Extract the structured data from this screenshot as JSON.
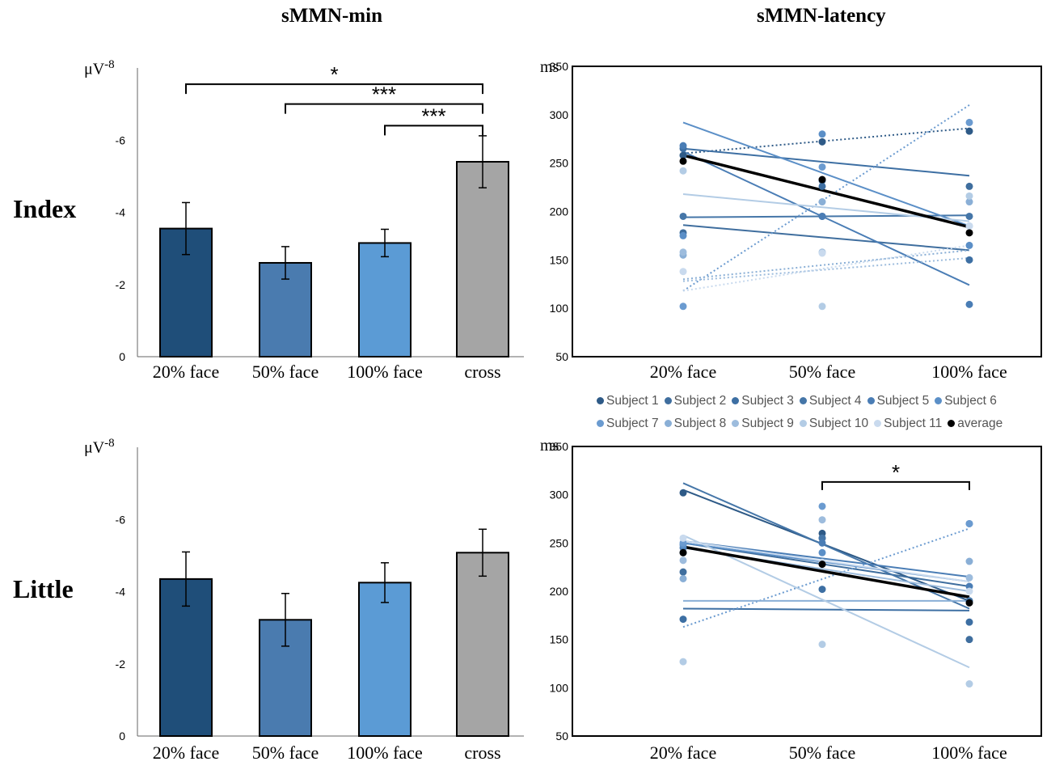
{
  "column_titles": {
    "left": "sMMN-min",
    "right": "sMMN-latency"
  },
  "row_labels": {
    "top": "Index",
    "bottom": "Little"
  },
  "units": {
    "amplitude": "μV",
    "amplitude_exp": "-8",
    "latency": "ms"
  },
  "chart_data": [
    {
      "type": "bar",
      "title": "sMMN-min",
      "row": "Index",
      "categories": [
        "20% face",
        "50% face",
        "100% face",
        "cross"
      ],
      "values": [
        -3.55,
        -2.6,
        -3.15,
        -5.4
      ],
      "errors": [
        0.72,
        0.45,
        0.38,
        0.72
      ],
      "colors": [
        "#1F4E79",
        "#4A7BAF",
        "#5B9BD5",
        "#A5A5A5"
      ],
      "ylim": [
        0,
        -8
      ],
      "yticks": [
        0,
        -2,
        -4,
        -6,
        -8
      ],
      "ytick_labels": [
        "0",
        "-2",
        "-4",
        "-6",
        "-8"
      ],
      "ylabel": "μV",
      "significance": [
        {
          "from": 0,
          "to": 3,
          "label": "*",
          "level": -7.55
        },
        {
          "from": 1,
          "to": 3,
          "label": "***",
          "level": -7.0
        },
        {
          "from": 2,
          "to": 3,
          "label": "***",
          "level": -6.4
        }
      ]
    },
    {
      "type": "bar",
      "title": "sMMN-min",
      "row": "Little",
      "categories": [
        "20% face",
        "50% face",
        "100% face",
        "cross"
      ],
      "values": [
        -4.35,
        -3.22,
        -4.25,
        -5.08
      ],
      "errors": [
        0.75,
        0.73,
        0.55,
        0.65
      ],
      "colors": [
        "#1F4E79",
        "#4A7BAF",
        "#5B9BD5",
        "#A5A5A5"
      ],
      "ylim": [
        0,
        -8
      ],
      "yticks": [
        0,
        -2,
        -4,
        -6,
        -8
      ],
      "ytick_labels": [
        "0",
        "-2",
        "-4",
        "-6",
        "-8"
      ],
      "ylabel": "μV",
      "significance": []
    },
    {
      "type": "scatter",
      "title": "sMMN-latency",
      "row": "Index",
      "categories": [
        "20% face",
        "50% face",
        "100% face"
      ],
      "ylim": [
        50,
        350
      ],
      "yticks": [
        50,
        100,
        150,
        200,
        250,
        300,
        350
      ],
      "ytick_labels": [
        "50",
        "100",
        "150",
        "200",
        "250",
        "300",
        "350"
      ],
      "ylabel": "ms",
      "series": [
        {
          "name": "Subject 1",
          "color": "#2E5A87",
          "values": [
            258,
            272,
            283
          ],
          "fit": [
            260,
            286
          ],
          "dashed": true
        },
        {
          "name": "Subject 2",
          "color": "#3F6E9E",
          "values": [
            178,
            232,
            226
          ],
          "fit": [
            186,
            160
          ],
          "dashed": false
        },
        {
          "name": "Subject 3",
          "color": "#3D6FA3",
          "values": [
            265,
            226,
            150
          ],
          "fit": [
            265,
            237
          ],
          "dashed": false
        },
        {
          "name": "Subject 4",
          "color": "#4576A8",
          "values": [
            195,
            195,
            195
          ],
          "fit": [
            194,
            196
          ],
          "dashed": false
        },
        {
          "name": "Subject 5",
          "color": "#4A7DB5",
          "values": [
            268,
            195,
            104
          ],
          "fit": [
            262,
            124
          ],
          "dashed": false
        },
        {
          "name": "Subject 6",
          "color": "#5B8FC7",
          "values": [
            175,
            280,
            165
          ],
          "fit": [
            292,
            185
          ],
          "dashed": false
        },
        {
          "name": "Subject 7",
          "color": "#6B9BD0",
          "values": [
            102,
            246,
            292
          ],
          "fit": [
            118,
            310
          ],
          "dashed": true
        },
        {
          "name": "Subject 8",
          "color": "#8AAFD6",
          "values": [
            155,
            210,
            210
          ],
          "fit": [
            130,
            160
          ],
          "dashed": true
        },
        {
          "name": "Subject 9",
          "color": "#9DBCDD",
          "values": [
            158,
            158,
            185
          ],
          "fit": [
            128,
            152
          ],
          "dashed": true
        },
        {
          "name": "Subject 10",
          "color": "#B3CCE5",
          "values": [
            242,
            102,
            216
          ],
          "fit": [
            218,
            190
          ],
          "dashed": false
        },
        {
          "name": "Subject 11",
          "color": "#C9DAEE",
          "values": [
            138,
            157,
            185
          ],
          "fit": [
            118,
            165
          ],
          "dashed": true
        },
        {
          "name": "average",
          "color": "#000000",
          "values": [
            252,
            233,
            178
          ],
          "fit": [
            258,
            184
          ],
          "dashed": false,
          "bold": true
        }
      ],
      "significance": []
    },
    {
      "type": "scatter",
      "title": "sMMN-latency",
      "row": "Little",
      "categories": [
        "20% face",
        "50% face",
        "100% face"
      ],
      "ylim": [
        50,
        350
      ],
      "yticks": [
        50,
        100,
        150,
        200,
        250,
        300,
        350
      ],
      "ytick_labels": [
        "50",
        "100",
        "150",
        "200",
        "250",
        "300",
        "350"
      ],
      "ylabel": "ms",
      "series": [
        {
          "name": "Subject 1",
          "color": "#2E5A87",
          "values": [
            302,
            260,
            190
          ],
          "fit": [
            305,
            190
          ],
          "dashed": false
        },
        {
          "name": "Subject 2",
          "color": "#3F6E9E",
          "values": [
            220,
            255,
            150
          ],
          "fit": [
            250,
            205
          ],
          "dashed": false
        },
        {
          "name": "Subject 3",
          "color": "#3D6FA3",
          "values": [
            171,
            202,
            168
          ],
          "fit": [
            182,
            180
          ],
          "dashed": false
        },
        {
          "name": "Subject 4",
          "color": "#4576A8",
          "values": [
            240,
            255,
            190
          ],
          "fit": [
            312,
            182
          ],
          "dashed": false
        },
        {
          "name": "Subject 5",
          "color": "#4A7DB5",
          "values": [
            245,
            250,
            205
          ],
          "fit": [
            252,
            215
          ],
          "dashed": false
        },
        {
          "name": "Subject 6",
          "color": "#5B8FC7",
          "values": [
            248,
            240,
            270
          ],
          "fit": [
            250,
            210
          ],
          "dashed": false
        },
        {
          "name": "Subject 7",
          "color": "#6B9BD0",
          "values": [
            250,
            288,
            270
          ],
          "fit": [
            163,
            265
          ],
          "dashed": true
        },
        {
          "name": "Subject 8",
          "color": "#8AAFD6",
          "values": [
            213,
            230,
            231
          ],
          "fit": [
            190,
            190
          ],
          "dashed": false
        },
        {
          "name": "Subject 9",
          "color": "#9DBCDD",
          "values": [
            232,
            274,
            214
          ],
          "fit": [
            245,
            200
          ],
          "dashed": false
        },
        {
          "name": "Subject 10",
          "color": "#B3CCE5",
          "values": [
            127,
            145,
            104
          ],
          "fit": [
            258,
            121
          ],
          "dashed": false
        },
        {
          "name": "Subject 11",
          "color": "#C9DAEE",
          "values": [
            255,
            230,
            200
          ],
          "fit": [
            252,
            210
          ],
          "dashed": false
        },
        {
          "name": "average",
          "color": "#000000",
          "values": [
            240,
            228,
            188
          ],
          "fit": [
            246,
            194
          ],
          "dashed": false,
          "bold": true
        }
      ],
      "significance": [
        {
          "from": 1,
          "to": 2,
          "label": "*",
          "level": 330
        }
      ]
    }
  ],
  "legend": [
    {
      "label": "Subject 1",
      "color": "#2E5A87"
    },
    {
      "label": "Subject 2",
      "color": "#3F6E9E"
    },
    {
      "label": "Subject 3",
      "color": "#3D6FA3"
    },
    {
      "label": "Subject 4",
      "color": "#4576A8"
    },
    {
      "label": "Subject 5",
      "color": "#4A7DB5"
    },
    {
      "label": "Subject 6",
      "color": "#5B8FC7"
    },
    {
      "label": "Subject 7",
      "color": "#6B9BD0"
    },
    {
      "label": "Subject 8",
      "color": "#8AAFD6"
    },
    {
      "label": "Subject 9",
      "color": "#9DBCDD"
    },
    {
      "label": "Subject 10",
      "color": "#B3CCE5"
    },
    {
      "label": "Subject 11",
      "color": "#C9DAEE"
    },
    {
      "label": "average",
      "color": "#000000"
    }
  ]
}
